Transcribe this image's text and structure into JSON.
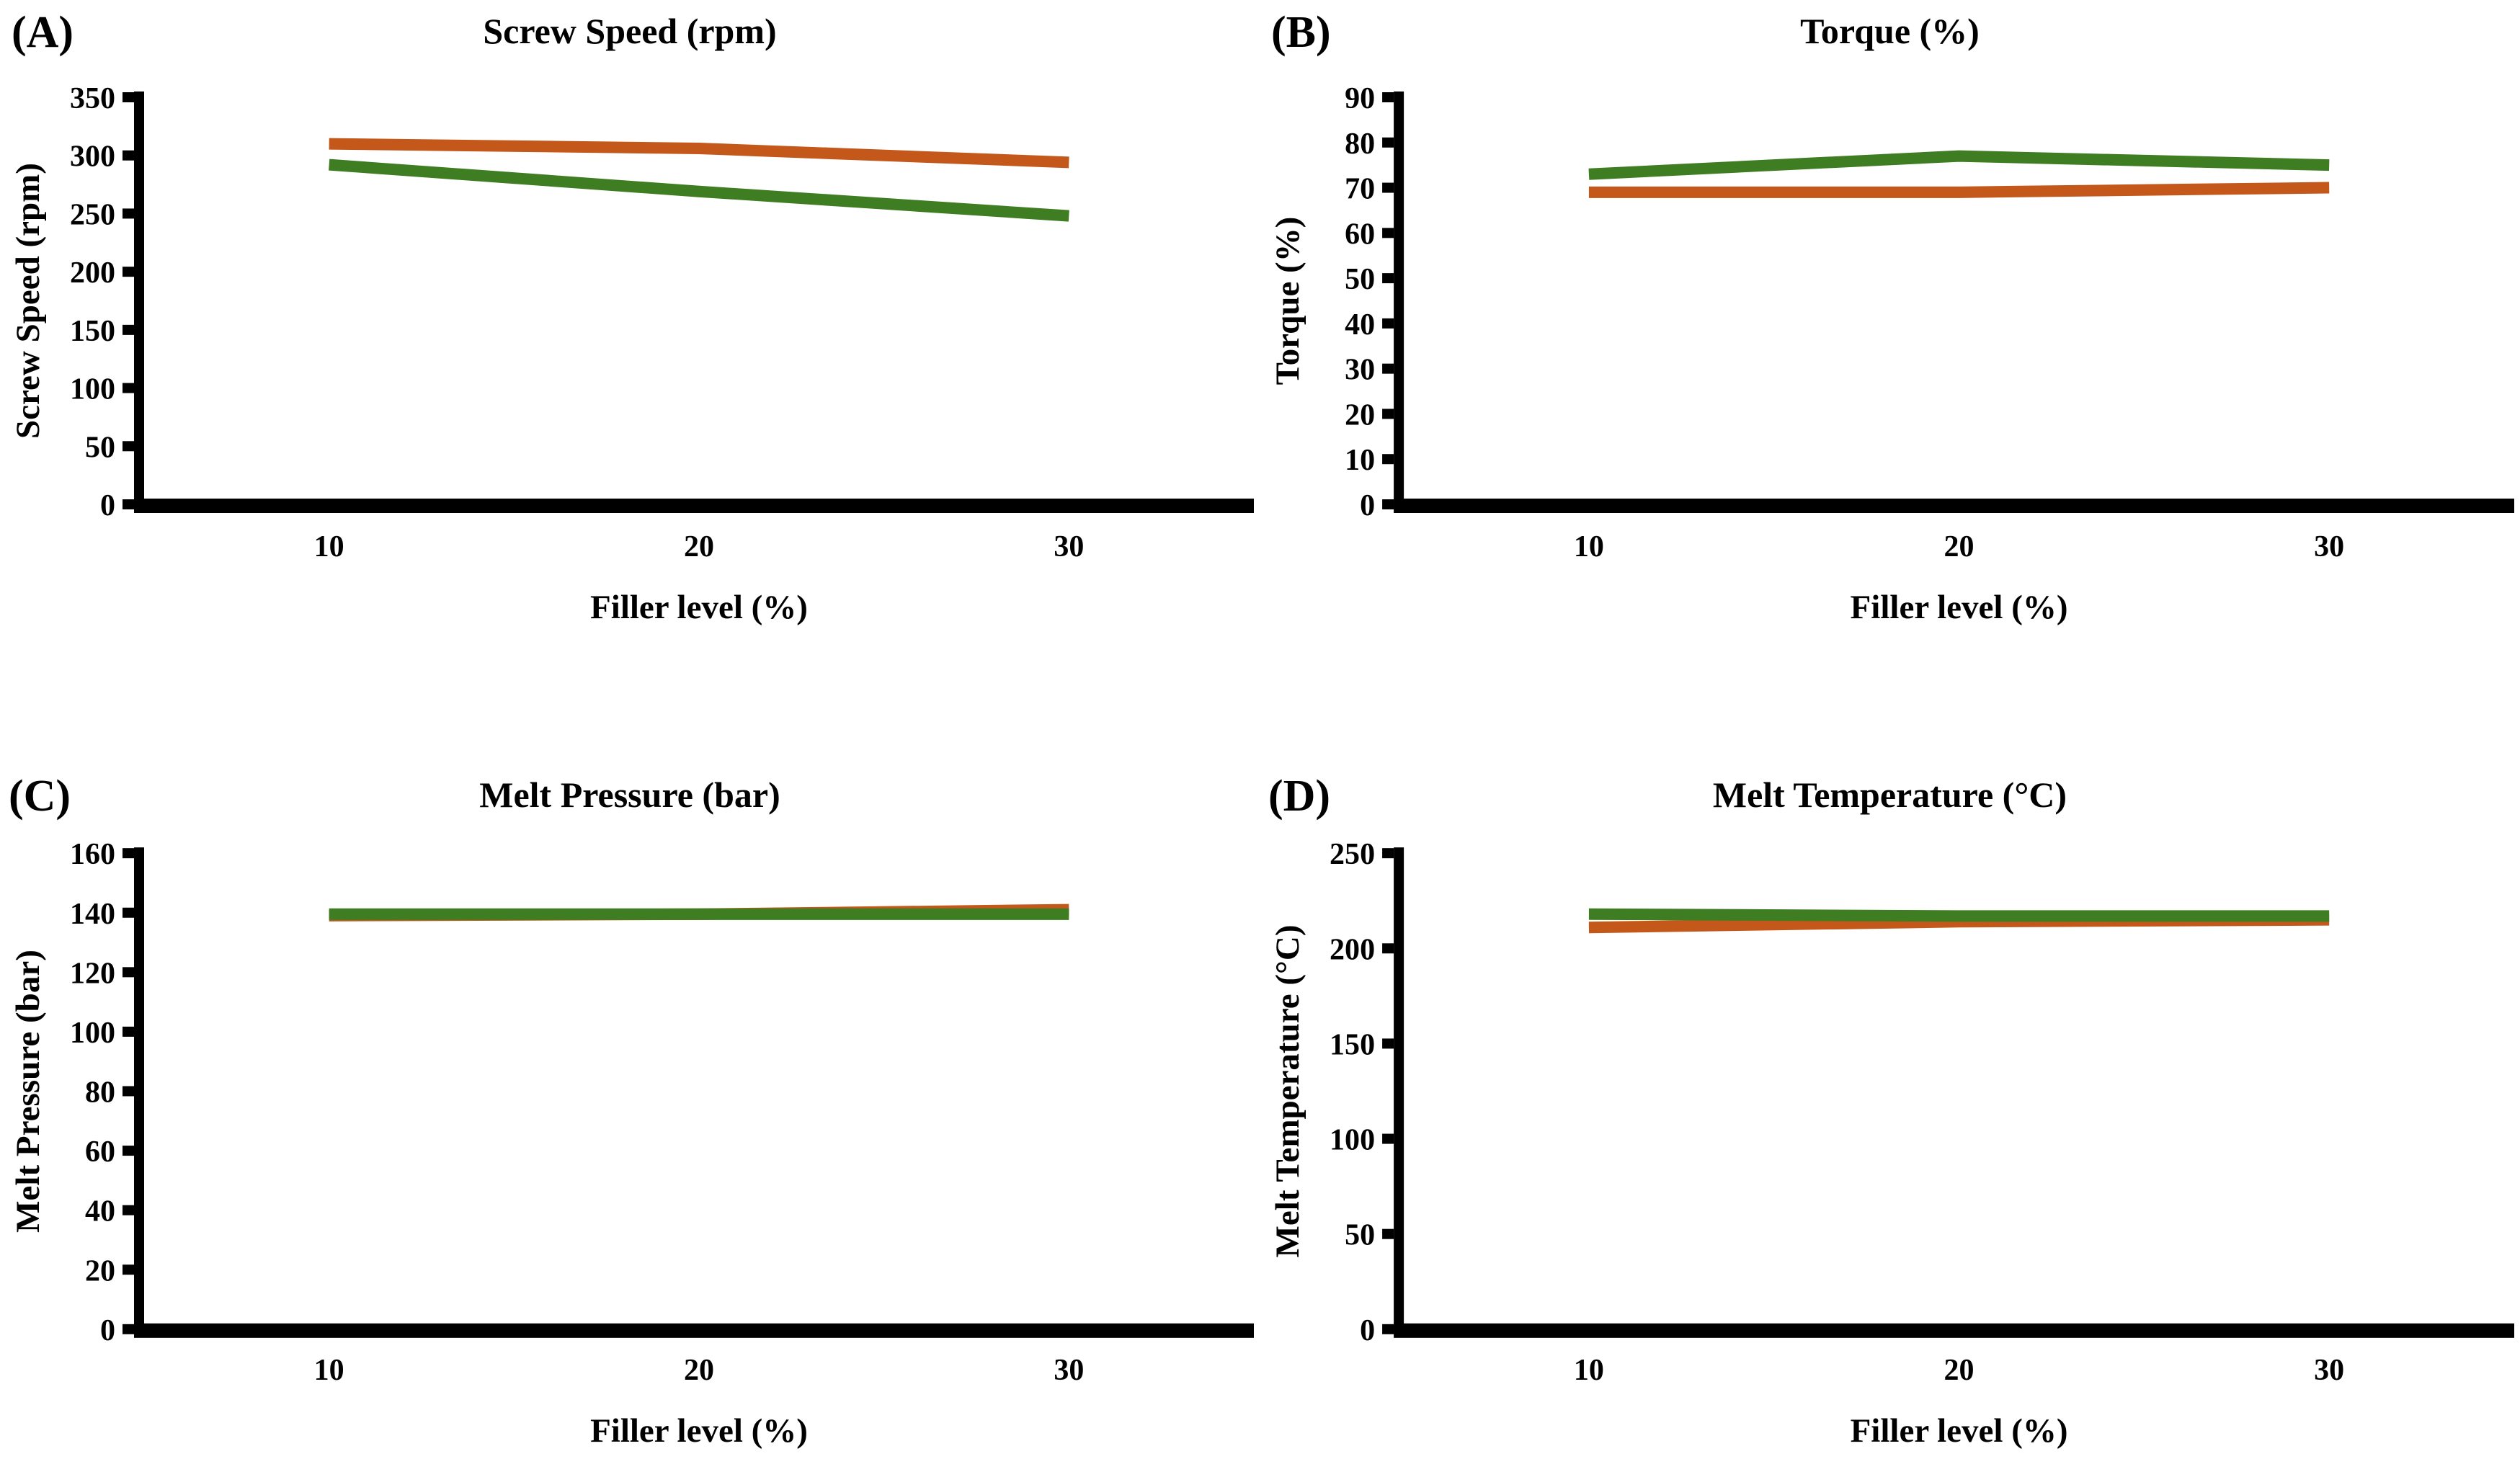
{
  "colors": {
    "orange": "#c4571a",
    "green": "#3f7d22",
    "axis": "#000000",
    "background": "#ffffff"
  },
  "chart_data": {
    "type": "line",
    "categories": [
      10,
      20,
      30
    ],
    "xlabel": "Filler level (%)",
    "legend": "none",
    "grid": false,
    "panels": [
      {
        "id": "A",
        "label": "(A)",
        "title": "Screw Speed (rpm)",
        "ylabel": "Screw Speed (rpm)",
        "xlabel": "Filler level (%)",
        "ylim": [
          0,
          350
        ],
        "yticks": [
          350,
          300,
          250,
          200,
          150,
          100,
          50,
          0
        ],
        "categories": [
          10,
          20,
          30
        ],
        "series": [
          {
            "name": "orange",
            "color": "#c4571a",
            "values": [
              310,
              306,
              294
            ]
          },
          {
            "name": "green",
            "color": "#3f7d22",
            "values": [
              292,
              269,
              248
            ]
          }
        ]
      },
      {
        "id": "B",
        "label": "(B)",
        "title": "Torque (%)",
        "ylabel": "Torque (%)",
        "xlabel": "Filler level (%)",
        "ylim": [
          0,
          90
        ],
        "yticks": [
          90,
          80,
          70,
          60,
          50,
          40,
          30,
          20,
          10,
          0
        ],
        "categories": [
          10,
          20,
          30
        ],
        "series": [
          {
            "name": "orange",
            "color": "#c4571a",
            "values": [
              69,
              69,
              70
            ]
          },
          {
            "name": "green",
            "color": "#3f7d22",
            "values": [
              73,
              77,
              75
            ]
          }
        ]
      },
      {
        "id": "C",
        "label": "(C)",
        "title": "Melt Pressure (bar)",
        "ylabel": "Melt Pressure (bar)",
        "xlabel": "Filler level (%)",
        "ylim": [
          0,
          160
        ],
        "yticks": [
          160,
          140,
          120,
          100,
          80,
          60,
          40,
          20,
          0
        ],
        "categories": [
          10,
          20,
          30
        ],
        "series": [
          {
            "name": "orange",
            "color": "#c4571a",
            "values": [
              139,
              139.5,
              141
            ]
          },
          {
            "name": "green",
            "color": "#3f7d22",
            "values": [
              139.5,
              139.5,
              139.5
            ]
          }
        ]
      },
      {
        "id": "D",
        "label": "(D)",
        "title": "Melt Temperature (°C)",
        "ylabel": "Melt Temperature (°C)",
        "xlabel": "Filler level (%)",
        "ylim": [
          0,
          250
        ],
        "yticks": [
          250,
          200,
          150,
          100,
          50,
          0
        ],
        "categories": [
          10,
          20,
          30
        ],
        "series": [
          {
            "name": "orange",
            "color": "#c4571a",
            "values": [
              211,
              214,
              215
            ]
          },
          {
            "name": "green",
            "color": "#3f7d22",
            "values": [
              218,
              217,
              217
            ]
          }
        ]
      }
    ]
  }
}
